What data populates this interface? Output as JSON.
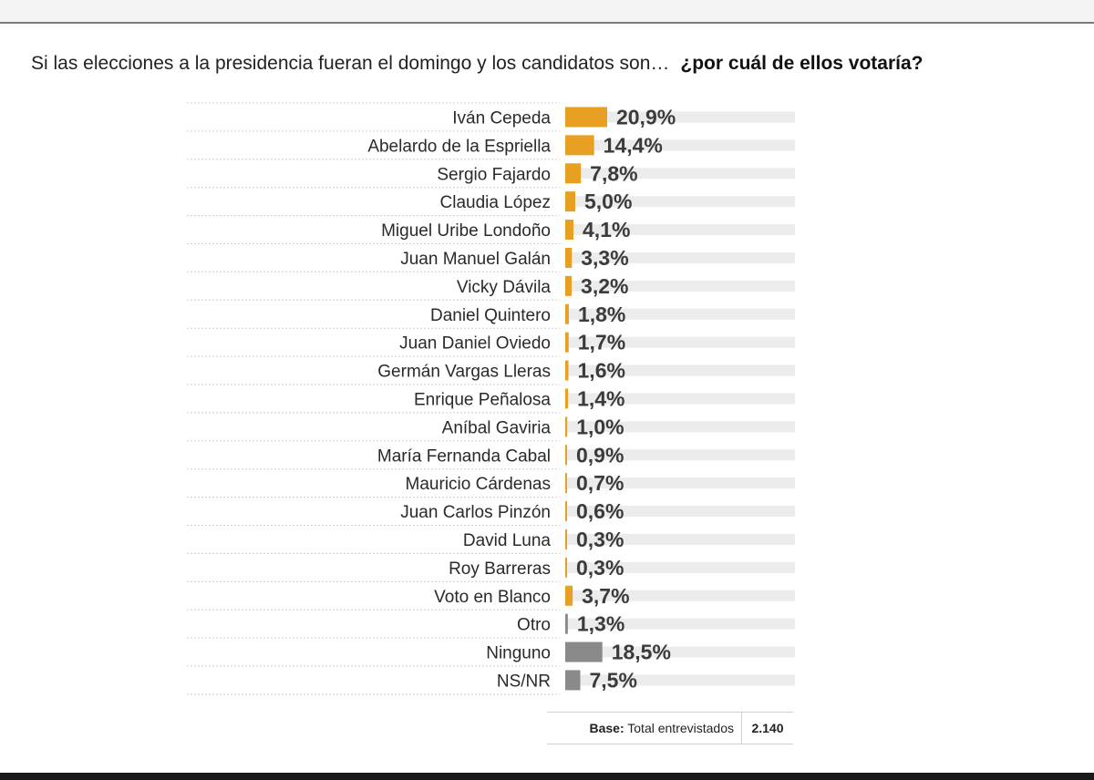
{
  "chart_data": {
    "type": "bar",
    "orientation": "horizontal",
    "title": "Si las elecciones a la presidencia fueran el domingo y los candidatos son…",
    "question": "¿por cuál de ellos votaría?",
    "categories": [
      "Iván Cepeda",
      "Abelardo de la Espriella",
      "Sergio Fajardo",
      "Claudia López",
      "Miguel Uribe Londoño",
      "Juan Manuel Galán",
      "Vicky Dávila",
      "Daniel Quintero",
      "Juan Daniel Oviedo",
      "Germán Vargas Lleras",
      "Enrique Peñalosa",
      "Aníbal Gaviria",
      "María Fernanda Cabal",
      "Mauricio Cárdenas",
      "Juan Carlos Pinzón",
      "David Luna",
      "Roy Barreras",
      "Voto en Blanco",
      "Otro",
      "Ninguno",
      "NS/NR"
    ],
    "values": [
      20.9,
      14.4,
      7.8,
      5.0,
      4.1,
      3.3,
      3.2,
      1.8,
      1.7,
      1.6,
      1.4,
      1.0,
      0.9,
      0.7,
      0.6,
      0.3,
      0.3,
      3.7,
      1.3,
      18.5,
      7.5
    ],
    "labels": [
      "20,9%",
      "14,4%",
      "7,8%",
      "5,0%",
      "4,1%",
      "3,3%",
      "3,2%",
      "1,8%",
      "1,7%",
      "1,6%",
      "1,4%",
      "1,0%",
      "0,9%",
      "0,7%",
      "0,6%",
      "0,3%",
      "0,3%",
      "3,7%",
      "1,3%",
      "18,5%",
      "7,5%"
    ],
    "colors": [
      "#e8a023",
      "#e8a023",
      "#e8a023",
      "#e8a023",
      "#e8a023",
      "#e8a023",
      "#e8a023",
      "#e8a023",
      "#e8a023",
      "#e8a023",
      "#e8a023",
      "#e8a023",
      "#e8a023",
      "#e8a023",
      "#e8a023",
      "#e8a023",
      "#e8a023",
      "#e8a023",
      "#8a8a8a",
      "#8a8a8a",
      "#8a8a8a"
    ],
    "track_color": "#ececec",
    "xlim": [
      0,
      100
    ]
  },
  "base": {
    "label": "Base:",
    "text": "Total entrevistados",
    "value": "2.140"
  }
}
